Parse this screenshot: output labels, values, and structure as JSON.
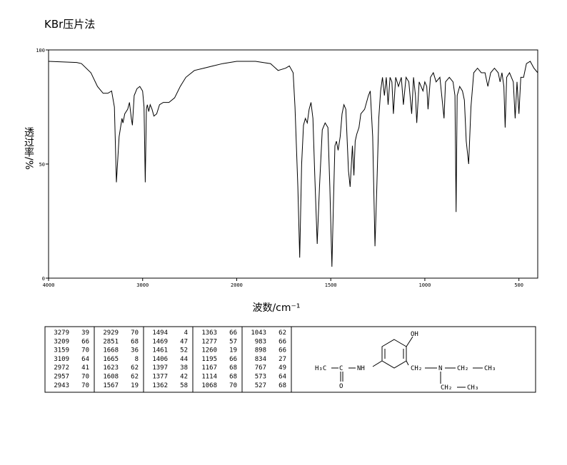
{
  "chart_data": {
    "type": "line",
    "title": "KBr压片法",
    "xlabel": "波数/cm⁻¹",
    "ylabel": "透过率/%",
    "xlim": [
      4000,
      400
    ],
    "ylim": [
      0,
      100
    ],
    "xticks": [
      4000,
      3000,
      2000,
      1500,
      1000,
      500
    ],
    "yticks": [
      0,
      50,
      100
    ],
    "x_scale_change": 2000,
    "color": "#000000",
    "x": [
      4000,
      3700,
      3650,
      3550,
      3480,
      3420,
      3370,
      3330,
      3300,
      3279,
      3250,
      3220,
      3209,
      3190,
      3159,
      3140,
      3120,
      3109,
      3090,
      3060,
      3030,
      3000,
      2985,
      2972,
      2960,
      2950,
      2935,
      2920,
      2900,
      2880,
      2851,
      2820,
      2780,
      2720,
      2660,
      2600,
      2540,
      2450,
      2350,
      2250,
      2150,
      2000,
      1900,
      1820,
      1780,
      1740,
      1720,
      1700,
      1690,
      1675,
      1665,
      1655,
      1645,
      1635,
      1625,
      1615,
      1605,
      1595,
      1585,
      1572,
      1560,
      1545,
      1530,
      1515,
      1505,
      1494,
      1485,
      1478,
      1470,
      1461,
      1450,
      1440,
      1430,
      1420,
      1406,
      1397,
      1385,
      1377,
      1370,
      1362,
      1350,
      1340,
      1320,
      1300,
      1290,
      1277,
      1265,
      1255,
      1245,
      1235,
      1225,
      1215,
      1205,
      1195,
      1185,
      1175,
      1167,
      1155,
      1140,
      1125,
      1114,
      1100,
      1085,
      1070,
      1060,
      1050,
      1043,
      1030,
      1010,
      1000,
      990,
      983,
      970,
      955,
      940,
      920,
      898,
      890,
      870,
      850,
      840,
      834,
      828,
      815,
      800,
      790,
      780,
      767,
      755,
      740,
      720,
      700,
      680,
      665,
      650,
      630,
      610,
      600,
      590,
      580,
      573,
      565,
      550,
      530,
      520,
      510,
      500,
      490,
      475,
      460,
      440,
      420,
      400
    ],
    "values": [
      95,
      94.5,
      94,
      90,
      84,
      81,
      81,
      82,
      75,
      42,
      62,
      70,
      68,
      72,
      74,
      77,
      70,
      67,
      80,
      83,
      84,
      82,
      75,
      42,
      74,
      76,
      73,
      76,
      74,
      71,
      72,
      76,
      77,
      77,
      79,
      84,
      88,
      91,
      92,
      93,
      94,
      95,
      95,
      94,
      91,
      92,
      93,
      90,
      75,
      40,
      9,
      50,
      67,
      70,
      68,
      74,
      77,
      70,
      45,
      15,
      40,
      65,
      68,
      66,
      40,
      5,
      35,
      58,
      60,
      56,
      62,
      72,
      76,
      74,
      47,
      40,
      58,
      45,
      60,
      63,
      66,
      72,
      74,
      80,
      82,
      62,
      14,
      40,
      70,
      82,
      88,
      80,
      88,
      76,
      88,
      86,
      72,
      88,
      84,
      88,
      76,
      88,
      86,
      72,
      88,
      80,
      68,
      86,
      82,
      86,
      84,
      74,
      88,
      90,
      86,
      88,
      70,
      86,
      88,
      86,
      80,
      29,
      80,
      84,
      82,
      78,
      60,
      50,
      75,
      90,
      92,
      90,
      90,
      84,
      90,
      92,
      90,
      86,
      90,
      84,
      66,
      88,
      90,
      86,
      70,
      86,
      72,
      88,
      88,
      94,
      95,
      92,
      90
    ]
  },
  "peak_table": {
    "columns": [
      [
        [
          3279,
          39
        ],
        [
          3209,
          66
        ],
        [
          3159,
          70
        ],
        [
          3109,
          64
        ],
        [
          2972,
          41
        ],
        [
          2957,
          70
        ],
        [
          2943,
          70
        ]
      ],
      [
        [
          2929,
          70
        ],
        [
          2851,
          68
        ],
        [
          1668,
          36
        ],
        [
          1665,
          8
        ],
        [
          1623,
          62
        ],
        [
          1608,
          62
        ],
        [
          1567,
          19
        ]
      ],
      [
        [
          1494,
          4
        ],
        [
          1469,
          47
        ],
        [
          1461,
          52
        ],
        [
          1406,
          44
        ],
        [
          1397,
          38
        ],
        [
          1377,
          42
        ],
        [
          1362,
          58
        ]
      ],
      [
        [
          1363,
          66
        ],
        [
          1277,
          57
        ],
        [
          1260,
          19
        ],
        [
          1195,
          66
        ],
        [
          1167,
          68
        ],
        [
          1114,
          68
        ],
        [
          1068,
          70
        ]
      ],
      [
        [
          1043,
          62
        ],
        [
          983,
          66
        ],
        [
          898,
          66
        ],
        [
          834,
          27
        ],
        [
          767,
          49
        ],
        [
          573,
          64
        ],
        [
          527,
          68
        ]
      ]
    ]
  },
  "structure": {
    "labels": [
      "OH",
      "H₃C",
      "C",
      "O",
      "NH",
      "CH₂",
      "N",
      "CH₂",
      "CH₃",
      "CH₂",
      "CH₃"
    ]
  }
}
